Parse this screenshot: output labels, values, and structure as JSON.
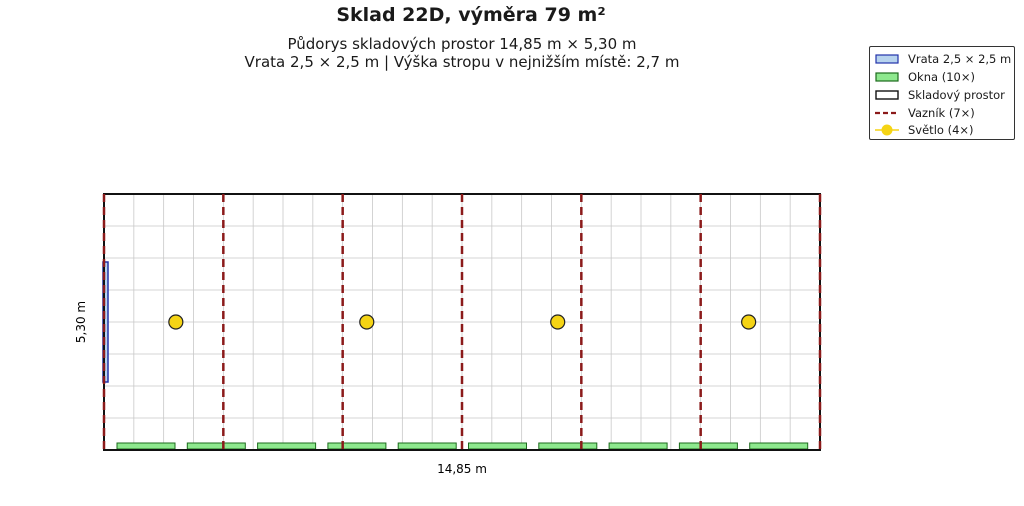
{
  "title": "Sklad 22D, výměra 79 m²",
  "subtitle_line1": "Půdorys skladových prostor 14,85 m × 5,30 m",
  "subtitle_line2": "Vrata 2,5 × 2,5 m | Výška stropu v nejnižším místě: 2,7 m",
  "dimensions": {
    "width_label": "14,85 m",
    "height_label": "5,30 m"
  },
  "legend": [
    {
      "key": "door",
      "label": "Vrata 2,5 × 2,5 m"
    },
    {
      "key": "window",
      "label": "Okna (10×)"
    },
    {
      "key": "storage",
      "label": "Skladový prostor"
    },
    {
      "key": "truss",
      "label": "Vazník (7×)"
    },
    {
      "key": "light",
      "label": "Světlo (4×)"
    }
  ],
  "colors": {
    "door_fill": "#b7d3ee",
    "door_stroke": "#2233aa",
    "window_fill": "#8ee88e",
    "window_stroke": "#1d6b1d",
    "truss": "#8b1a1a",
    "light_fill": "#f5d415",
    "light_stroke": "#222222",
    "grid": "#c8c8c8",
    "wall": "#111111"
  },
  "plan": {
    "length_m": 14.85,
    "width_m": 5.3,
    "truss_positions_m": [
      0,
      2.475,
      4.95,
      7.425,
      9.9,
      12.375,
      14.85
    ],
    "light_positions_m": [
      1.49,
      5.45,
      9.41,
      13.37
    ],
    "light_y_m": 2.65,
    "window_count": 10,
    "door_width_m": 2.5
  }
}
